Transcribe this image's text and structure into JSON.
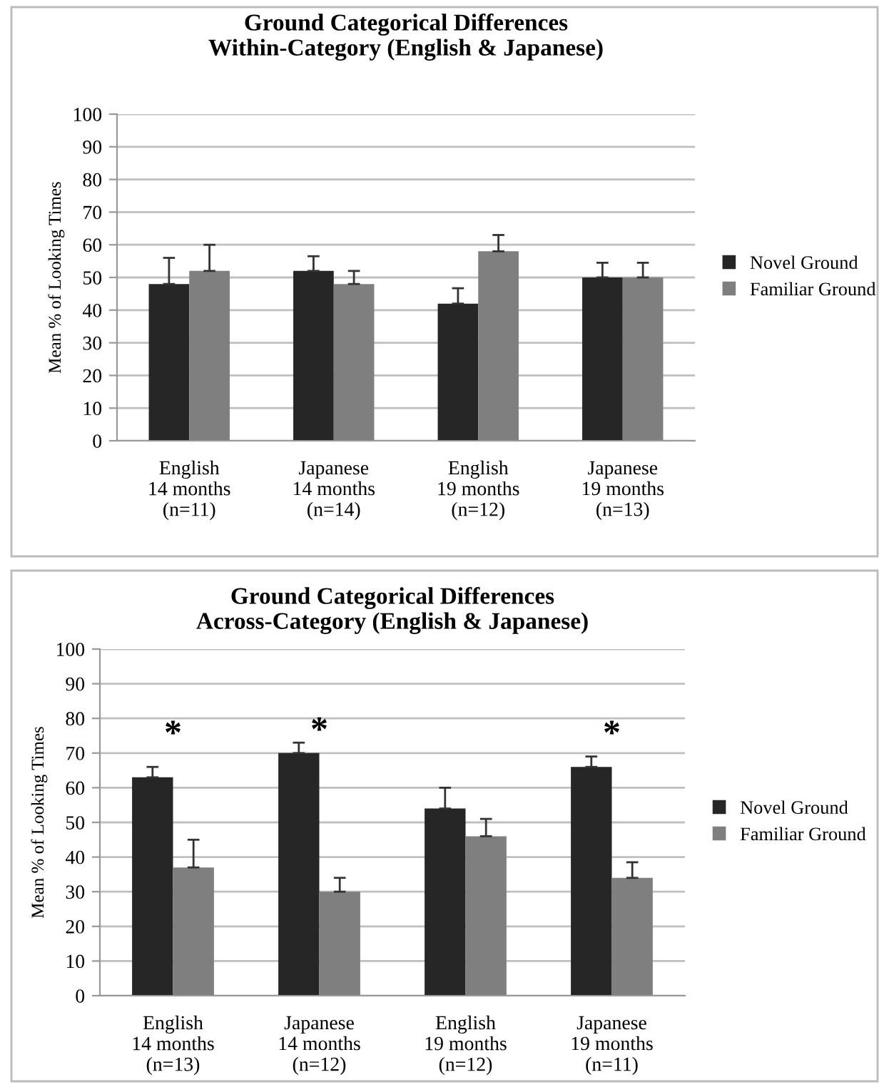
{
  "chart_data": [
    {
      "type": "bar",
      "title": "Ground Categorical Differences\nWithin-Category (English & Japanese)",
      "ylabel": "Mean % of Looking Times",
      "categories": [
        "English\n14 months\n(n=11)",
        "Japanese\n14 months\n(n=14)",
        "English\n19 months\n(n=12)",
        "Japanese\n19 months\n(n=13)"
      ],
      "series": [
        {
          "name": "Novel Ground",
          "color": "#262626",
          "values": [
            48,
            52,
            42,
            50
          ],
          "errors": [
            [
              48,
              56
            ],
            [
              52,
              56.5
            ],
            [
              42,
              46.7
            ],
            [
              50,
              54.5
            ]
          ]
        },
        {
          "name": "Familiar Ground",
          "color": "#7f7f7f",
          "values": [
            52,
            48,
            58,
            50
          ],
          "errors": [
            [
              52,
              60
            ],
            [
              48,
              52
            ],
            [
              58,
              63
            ],
            [
              50,
              54.5
            ]
          ]
        }
      ],
      "ylim": [
        0,
        100
      ],
      "yticks": [
        0,
        10,
        20,
        30,
        40,
        50,
        60,
        70,
        80,
        90,
        100
      ],
      "grid": "y",
      "legend": "right"
    },
    {
      "type": "bar",
      "title": "Ground Categorical Differences\nAcross-Category (English & Japanese)",
      "ylabel": "Mean % of Looking Times",
      "categories": [
        "English\n14 months\n(n=13)",
        "Japanese\n14 months\n(n=12)",
        "English\n19 months\n(n=12)",
        "Japanese\n19 months\n(n=11)"
      ],
      "series": [
        {
          "name": "Novel Ground",
          "color": "#262626",
          "values": [
            63,
            70,
            54,
            66
          ],
          "errors": [
            [
              63,
              66
            ],
            [
              70,
              73
            ],
            [
              54,
              60
            ],
            [
              66,
              69
            ]
          ]
        },
        {
          "name": "Familiar Ground",
          "color": "#7f7f7f",
          "values": [
            37,
            30,
            46,
            34
          ],
          "errors": [
            [
              37,
              45
            ],
            [
              30,
              34
            ],
            [
              46,
              51
            ],
            [
              34,
              38.5
            ]
          ]
        }
      ],
      "annotations": [
        "*",
        "*",
        "*"
      ],
      "ylim": [
        0,
        100
      ],
      "yticks": [
        0,
        10,
        20,
        30,
        40,
        50,
        60,
        70,
        80,
        90,
        100
      ],
      "grid": "y",
      "legend": "right"
    }
  ]
}
